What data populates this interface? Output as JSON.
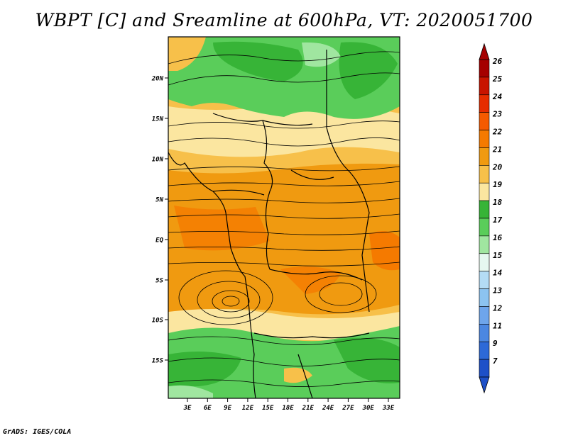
{
  "title": "WBPT [C] and Sreamline at 600hPa, VT: 2020051700",
  "credit": "GrADS: IGES/COLA",
  "map": {
    "lat_ticks": [
      "20N",
      "15N",
      "10N",
      "5N",
      "EQ",
      "5S",
      "10S",
      "15S"
    ],
    "lon_ticks": [
      "3E",
      "6E",
      "9E",
      "12E",
      "15E",
      "18E",
      "21E",
      "24E",
      "27E",
      "30E",
      "33E"
    ]
  },
  "colorbar": {
    "levels": [
      "26",
      "25",
      "24",
      "23",
      "22",
      "21",
      "20",
      "19",
      "18",
      "17",
      "16",
      "15",
      "14",
      "13",
      "12",
      "11",
      "9",
      "7"
    ],
    "colors": [
      "#a50000",
      "#c81400",
      "#e62d00",
      "#f55a00",
      "#f57a00",
      "#f09a10",
      "#f7c04a",
      "#fbe6a0",
      "#37b437",
      "#5acd5a",
      "#a0e6a0",
      "#e6f8f0",
      "#b4dcf5",
      "#8cc3f0",
      "#6ea5eb",
      "#4b87e1",
      "#2d69d7",
      "#1e50c8"
    ]
  }
}
